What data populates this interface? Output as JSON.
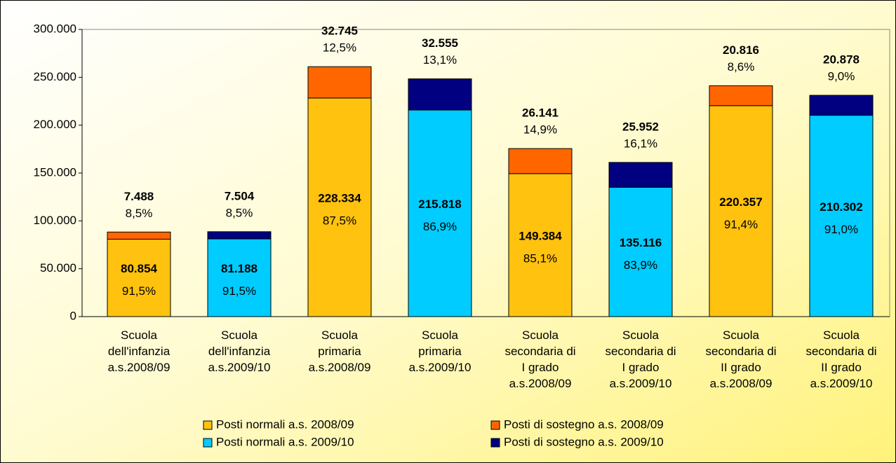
{
  "chart_data": {
    "type": "stacked_bar",
    "categories": [
      "Scuola\ndell'infanzia\na.s.2008/09",
      "Scuola\ndell'infanzia\na.s.2009/10",
      "Scuola\nprimaria\na.s.2008/09",
      "Scuola\nprimaria\na.s.2009/10",
      "Scuola\nsecondaria di\nI grado\na.s.2008/09",
      "Scuola\nsecondaria di\nI grado\na.s.2009/10",
      "Scuola\nsecondaria di\nII grado\na.s.2008/09",
      "Scuola\nsecondaria di\nII grado\na.s.2009/10"
    ],
    "series": [
      {
        "name": "Posti normali a.s. 2008/09",
        "color": "#ffc20e",
        "values": [
          80854,
          null,
          228334,
          null,
          149384,
          null,
          220357,
          null
        ],
        "value_labels": [
          "80.854",
          null,
          "228.334",
          null,
          "149.384",
          null,
          "220.357",
          null
        ],
        "percents": [
          91.5,
          null,
          87.5,
          null,
          85.1,
          null,
          91.4,
          null
        ],
        "percent_labels": [
          "91,5%",
          null,
          "87,5%",
          null,
          "85,1%",
          null,
          "91,4%",
          null
        ]
      },
      {
        "name": "Posti di sostegno a.s. 2008/09",
        "color": "#ff6600",
        "values": [
          7488,
          null,
          32745,
          null,
          26141,
          null,
          20816,
          null
        ],
        "value_labels": [
          "7.488",
          null,
          "32.745",
          null,
          "26.141",
          null,
          "20.816",
          null
        ],
        "percents": [
          8.5,
          null,
          12.5,
          null,
          14.9,
          null,
          8.6,
          null
        ],
        "percent_labels": [
          "8,5%",
          null,
          "12,5%",
          null,
          "14,9%",
          null,
          "8,6%",
          null
        ]
      },
      {
        "name": "Posti normali a.s. 2009/10",
        "color": "#00ccff",
        "values": [
          null,
          81188,
          null,
          215818,
          null,
          135116,
          null,
          210302
        ],
        "value_labels": [
          null,
          "81.188",
          null,
          "215.818",
          null,
          "135.116",
          null,
          "210.302"
        ],
        "percents": [
          null,
          91.5,
          null,
          86.9,
          null,
          83.9,
          null,
          91.0
        ],
        "percent_labels": [
          null,
          "91,5%",
          null,
          "86,9%",
          null,
          "83,9%",
          null,
          "91,0%"
        ]
      },
      {
        "name": "Posti di sostegno a.s. 2009/10",
        "color": "#000080",
        "values": [
          null,
          7504,
          null,
          32555,
          null,
          25952,
          null,
          20878
        ],
        "value_labels": [
          null,
          "7.504",
          null,
          "32.555",
          null,
          "25.952",
          null,
          "20.878"
        ],
        "percents": [
          null,
          8.5,
          null,
          13.1,
          null,
          16.1,
          null,
          9.0
        ],
        "percent_labels": [
          null,
          "8,5%",
          null,
          "13,1%",
          null,
          "16,1%",
          null,
          "9,0%"
        ]
      }
    ],
    "ylim": [
      0,
      300000
    ],
    "yticks": [
      0,
      {
        "value": 50000,
        "label": "50.000"
      },
      {
        "value": 100000,
        "label": "100.000"
      },
      {
        "value": 150000,
        "label": "150.000"
      },
      {
        "value": 200000,
        "label": "200.000"
      },
      {
        "value": 250000,
        "label": "250.000"
      },
      {
        "value": 300000,
        "label": "300.000"
      }
    ],
    "grid": false,
    "legend": "bottom"
  }
}
